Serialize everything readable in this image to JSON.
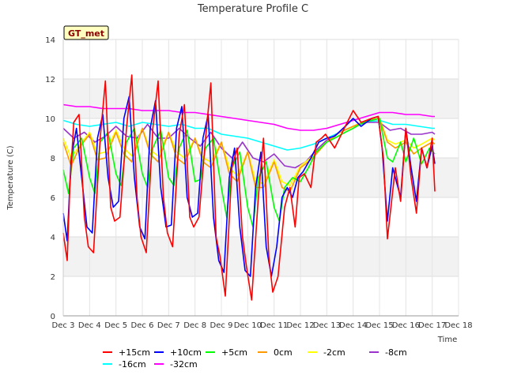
{
  "chart_data": {
    "type": "line",
    "title": "Temperature Profile C",
    "xlabel": "Time",
    "ylabel": "Temperature (C)",
    "badge": "GT_met",
    "ylim": [
      0,
      14
    ],
    "xlim": [
      3,
      18
    ],
    "yticks": [
      0,
      2,
      4,
      6,
      8,
      10,
      12,
      14
    ],
    "xticks": [
      {
        "v": 3,
        "label": "Dec 3"
      },
      {
        "v": 4,
        "label": "Dec 4"
      },
      {
        "v": 5,
        "label": "Dec 5"
      },
      {
        "v": 6,
        "label": "Dec 6"
      },
      {
        "v": 7,
        "label": "Dec 7"
      },
      {
        "v": 8,
        "label": "Dec 8"
      },
      {
        "v": 9,
        "label": "Dec 9"
      },
      {
        "v": 10,
        "label": "Dec 10"
      },
      {
        "v": 11,
        "label": "Dec 11"
      },
      {
        "v": 12,
        "label": "Dec 12"
      },
      {
        "v": 13,
        "label": "Dec 13"
      },
      {
        "v": 14,
        "label": "Dec 14"
      },
      {
        "v": 15,
        "label": "Dec 15"
      },
      {
        "v": 16,
        "label": "Dec 16"
      },
      {
        "v": 17,
        "label": "Dec 17"
      },
      {
        "v": 18,
        "label": "Dec 18"
      }
    ],
    "grid": true,
    "legend_position": "bottom",
    "series": [
      {
        "name": "+15cm",
        "color": "#ff0000",
        "x": [
          3.0,
          3.15,
          3.25,
          3.4,
          3.6,
          3.8,
          3.95,
          4.15,
          4.4,
          4.6,
          4.8,
          4.95,
          5.15,
          5.4,
          5.6,
          5.8,
          5.95,
          6.15,
          6.4,
          6.6,
          6.8,
          6.95,
          7.15,
          7.4,
          7.6,
          7.8,
          7.95,
          8.15,
          8.4,
          8.6,
          8.8,
          8.95,
          9.15,
          9.4,
          9.6,
          9.8,
          9.95,
          10.15,
          10.4,
          10.6,
          10.8,
          10.95,
          11.15,
          11.4,
          11.6,
          11.8,
          11.95,
          12.15,
          12.4,
          12.6,
          12.8,
          12.95,
          13.3,
          13.7,
          14.0,
          14.3,
          14.7,
          14.95,
          15.15,
          15.3,
          15.6,
          15.8,
          16.0,
          16.2,
          16.4,
          16.6,
          16.8,
          17.0,
          17.1
        ],
        "y": [
          4.2,
          2.8,
          6.5,
          9.8,
          10.2,
          5.0,
          3.5,
          3.2,
          9.0,
          11.9,
          5.5,
          4.8,
          5.0,
          9.5,
          12.2,
          6.0,
          4.0,
          3.2,
          9.5,
          11.9,
          6.0,
          4.2,
          3.5,
          9.2,
          10.7,
          5.0,
          4.5,
          5.0,
          9.0,
          11.8,
          4.0,
          3.0,
          1.0,
          7.5,
          8.5,
          4.0,
          2.5,
          0.8,
          6.0,
          9.0,
          3.0,
          1.2,
          2.0,
          5.5,
          6.5,
          4.5,
          7.0,
          7.2,
          6.5,
          8.8,
          9.0,
          9.2,
          8.5,
          9.6,
          10.4,
          9.8,
          10.0,
          10.1,
          8.0,
          3.9,
          7.5,
          5.8,
          9.5,
          7.0,
          5.2,
          8.5,
          7.5,
          9.0,
          6.3
        ]
      },
      {
        "name": "+10cm",
        "color": "#0000ff",
        "x": [
          3.0,
          3.15,
          3.3,
          3.5,
          3.7,
          3.9,
          4.1,
          4.3,
          4.5,
          4.7,
          4.9,
          5.1,
          5.3,
          5.5,
          5.7,
          5.9,
          6.1,
          6.3,
          6.5,
          6.7,
          6.9,
          7.1,
          7.3,
          7.5,
          7.7,
          7.9,
          8.1,
          8.3,
          8.5,
          8.7,
          8.9,
          9.1,
          9.3,
          9.5,
          9.7,
          9.9,
          10.1,
          10.3,
          10.5,
          10.7,
          10.9,
          11.1,
          11.3,
          11.5,
          11.7,
          11.9,
          12.1,
          12.4,
          12.7,
          13.0,
          13.3,
          13.7,
          14.0,
          14.3,
          14.7,
          14.95,
          15.1,
          15.3,
          15.5,
          15.8,
          16.0,
          16.2,
          16.4,
          16.6,
          16.8,
          17.0,
          17.1
        ],
        "y": [
          5.2,
          3.8,
          8.0,
          9.5,
          7.0,
          4.5,
          4.2,
          9.0,
          10.2,
          7.0,
          5.5,
          5.8,
          10.0,
          11.1,
          7.0,
          4.5,
          3.9,
          9.5,
          10.9,
          6.5,
          4.5,
          4.6,
          9.5,
          10.6,
          6.0,
          5.0,
          5.2,
          9.0,
          10.2,
          5.0,
          2.8,
          2.2,
          7.0,
          8.5,
          4.5,
          2.3,
          2.0,
          6.5,
          8.3,
          3.5,
          2.0,
          3.5,
          6.0,
          6.5,
          6.0,
          7.0,
          7.3,
          8.0,
          8.8,
          9.0,
          9.1,
          9.6,
          10.0,
          9.6,
          10.0,
          10.1,
          8.5,
          4.8,
          7.5,
          6.0,
          9.5,
          7.5,
          5.8,
          8.5,
          7.5,
          8.6,
          7.7
        ]
      },
      {
        "name": "+5cm",
        "color": "#00ff00",
        "x": [
          3.0,
          3.2,
          3.4,
          3.7,
          4.0,
          4.2,
          4.4,
          4.7,
          5.0,
          5.2,
          5.4,
          5.7,
          6.0,
          6.2,
          6.4,
          6.7,
          7.0,
          7.2,
          7.4,
          7.7,
          8.0,
          8.2,
          8.4,
          8.7,
          9.0,
          9.2,
          9.4,
          9.7,
          10.0,
          10.2,
          10.4,
          10.7,
          11.0,
          11.2,
          11.4,
          11.7,
          12.0,
          12.3,
          12.6,
          13.0,
          13.3,
          13.7,
          14.0,
          14.4,
          14.7,
          15.0,
          15.3,
          15.5,
          15.8,
          16.0,
          16.3,
          16.6,
          16.9,
          17.1
        ],
        "y": [
          7.4,
          6.2,
          8.5,
          9.0,
          7.0,
          6.2,
          8.8,
          9.3,
          7.2,
          6.6,
          8.8,
          9.5,
          7.2,
          6.5,
          8.5,
          9.4,
          7.0,
          6.6,
          8.5,
          9.4,
          6.8,
          6.9,
          8.5,
          9.0,
          6.5,
          5.0,
          7.5,
          8.3,
          5.5,
          4.5,
          7.0,
          7.8,
          5.5,
          4.8,
          6.5,
          7.0,
          6.8,
          7.5,
          8.3,
          8.8,
          9.0,
          9.3,
          9.5,
          9.8,
          9.9,
          10.0,
          8.0,
          7.8,
          8.8,
          7.8,
          9.0,
          7.7,
          8.5,
          8.2
        ]
      },
      {
        "name": "0cm",
        "color": "#ff9900",
        "x": [
          3.0,
          3.3,
          3.6,
          4.0,
          4.3,
          4.6,
          5.0,
          5.3,
          5.6,
          6.0,
          6.3,
          6.6,
          7.0,
          7.3,
          7.6,
          8.0,
          8.3,
          8.6,
          9.0,
          9.3,
          9.6,
          10.0,
          10.3,
          10.6,
          11.0,
          11.3,
          11.6,
          12.0,
          12.3,
          12.6,
          13.0,
          13.5,
          14.0,
          14.5,
          15.0,
          15.3,
          15.6,
          16.0,
          16.3,
          16.6,
          17.0,
          17.1
        ],
        "y": [
          8.8,
          7.6,
          8.5,
          9.2,
          7.9,
          8.0,
          9.3,
          8.2,
          7.8,
          9.5,
          8.2,
          7.8,
          9.3,
          8.0,
          7.7,
          9.0,
          7.8,
          7.5,
          8.8,
          7.2,
          6.8,
          8.3,
          6.5,
          6.5,
          7.8,
          6.5,
          6.3,
          7.5,
          7.8,
          8.2,
          8.8,
          9.3,
          9.6,
          9.9,
          10.0,
          8.8,
          8.5,
          8.8,
          8.2,
          8.5,
          8.8,
          8.7
        ]
      },
      {
        "name": "-2cm",
        "color": "#ffff00",
        "x": [
          3.0,
          3.3,
          3.6,
          4.0,
          4.3,
          4.6,
          5.0,
          5.3,
          5.6,
          6.0,
          6.3,
          6.6,
          7.0,
          7.3,
          7.6,
          8.0,
          8.3,
          8.6,
          9.0,
          9.3,
          9.6,
          10.0,
          10.3,
          10.6,
          11.0,
          11.3,
          11.6,
          12.0,
          12.3,
          12.6,
          13.0,
          13.5,
          14.0,
          14.5,
          15.0,
          15.3,
          15.6,
          16.0,
          16.3,
          16.6,
          17.0,
          17.1
        ],
        "y": [
          9.0,
          8.0,
          8.6,
          9.3,
          8.2,
          8.3,
          9.4,
          8.5,
          8.1,
          9.5,
          8.4,
          8.1,
          9.3,
          8.3,
          8.0,
          9.0,
          8.0,
          7.8,
          8.8,
          7.5,
          7.1,
          8.3,
          6.8,
          6.7,
          7.9,
          6.8,
          6.6,
          7.6,
          7.9,
          8.3,
          8.8,
          9.3,
          9.6,
          9.9,
          10.0,
          8.9,
          8.7,
          8.9,
          8.5,
          8.7,
          9.0,
          8.9
        ]
      },
      {
        "name": "-8cm",
        "color": "#9933cc",
        "x": [
          3.0,
          3.4,
          3.8,
          4.2,
          4.6,
          5.0,
          5.4,
          5.8,
          6.2,
          6.6,
          7.0,
          7.4,
          7.8,
          8.2,
          8.6,
          9.0,
          9.4,
          9.8,
          10.2,
          10.6,
          11.0,
          11.4,
          11.8,
          12.2,
          12.6,
          13.0,
          13.5,
          14.0,
          14.5,
          15.0,
          15.4,
          15.8,
          16.2,
          16.6,
          17.0,
          17.1
        ],
        "y": [
          9.5,
          9.0,
          9.3,
          8.8,
          9.1,
          9.6,
          9.1,
          9.0,
          9.7,
          9.0,
          9.0,
          9.5,
          9.0,
          8.6,
          9.3,
          8.5,
          8.0,
          8.8,
          8.0,
          7.8,
          8.2,
          7.6,
          7.5,
          7.8,
          8.4,
          8.9,
          9.3,
          9.6,
          9.8,
          9.8,
          9.4,
          9.5,
          9.2,
          9.2,
          9.3,
          9.2
        ]
      },
      {
        "name": "-16cm",
        "color": "#00ffff",
        "x": [
          3.0,
          3.5,
          4.0,
          4.5,
          5.0,
          5.5,
          6.0,
          6.5,
          7.0,
          7.5,
          8.0,
          8.5,
          9.0,
          9.5,
          10.0,
          10.5,
          11.0,
          11.5,
          12.0,
          12.5,
          13.0,
          13.5,
          14.0,
          14.5,
          15.0,
          15.5,
          16.0,
          16.5,
          17.0,
          17.1
        ],
        "y": [
          9.9,
          9.7,
          9.6,
          9.7,
          9.8,
          9.6,
          9.8,
          9.7,
          9.6,
          9.7,
          9.5,
          9.5,
          9.2,
          9.1,
          9.0,
          8.8,
          8.6,
          8.4,
          8.5,
          8.7,
          9.0,
          9.3,
          9.6,
          9.8,
          9.9,
          9.7,
          9.7,
          9.6,
          9.5,
          9.5
        ]
      },
      {
        "name": "-32cm",
        "color": "#ff00ff",
        "x": [
          3.0,
          3.5,
          4.0,
          4.5,
          5.0,
          5.5,
          6.0,
          6.5,
          7.0,
          7.5,
          8.0,
          8.5,
          9.0,
          9.5,
          10.0,
          10.5,
          11.0,
          11.5,
          12.0,
          12.5,
          13.0,
          13.5,
          14.0,
          14.5,
          15.0,
          15.5,
          16.0,
          16.5,
          17.0,
          17.1
        ],
        "y": [
          10.7,
          10.6,
          10.6,
          10.5,
          10.5,
          10.5,
          10.4,
          10.4,
          10.4,
          10.3,
          10.3,
          10.2,
          10.1,
          10.0,
          9.9,
          9.8,
          9.7,
          9.5,
          9.4,
          9.4,
          9.5,
          9.7,
          9.9,
          10.1,
          10.3,
          10.3,
          10.2,
          10.2,
          10.1,
          10.1
        ]
      }
    ]
  }
}
